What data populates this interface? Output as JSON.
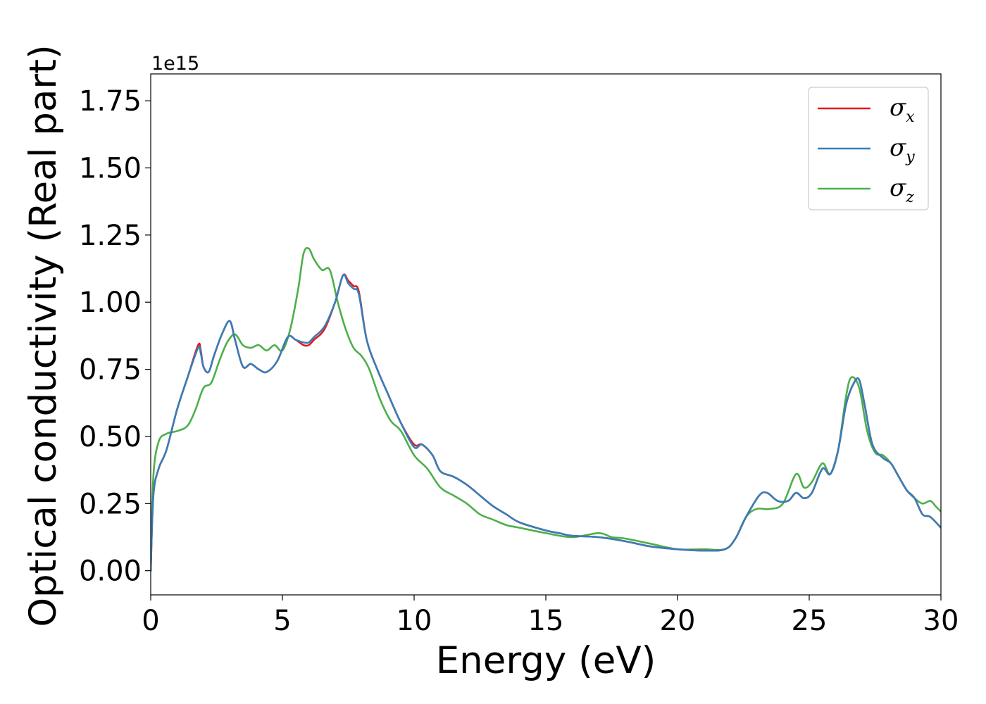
{
  "chart_data": {
    "type": "line",
    "xlabel": "Energy (eV)",
    "ylabel": "Optical conductivity (Real part)",
    "y_offset_text": "1e15",
    "xlim": [
      0,
      30
    ],
    "ylim": [
      -0.09,
      1.85
    ],
    "x_ticks": [
      0,
      5,
      10,
      15,
      20,
      25,
      30
    ],
    "x_tick_labels": [
      "0",
      "5",
      "10",
      "15",
      "20",
      "25",
      "30"
    ],
    "y_ticks": [
      0,
      0.25,
      0.5,
      0.75,
      1.0,
      1.25,
      1.5,
      1.75
    ],
    "y_tick_labels": [
      "0.00",
      "0.25",
      "0.50",
      "0.75",
      "1.00",
      "1.25",
      "1.50",
      "1.75"
    ],
    "grid": false,
    "legend_position": "top-right",
    "series": [
      {
        "name": "σx",
        "symbol": "σ",
        "subscript": "x",
        "color": "#e41a1c",
        "x": [
          0,
          0.1,
          0.3,
          0.6,
          1.0,
          1.4,
          1.8,
          1.9,
          2.0,
          2.2,
          2.4,
          2.7,
          3.0,
          3.2,
          3.5,
          3.8,
          4.1,
          4.4,
          4.8,
          5.2,
          5.5,
          5.8,
          6.0,
          6.2,
          6.6,
          7.0,
          7.3,
          7.5,
          7.7,
          7.9,
          8.2,
          8.6,
          9.0,
          9.5,
          10.0,
          10.3,
          10.7,
          11.0,
          11.5,
          12.0,
          12.5,
          13.0,
          13.5,
          14.0,
          15.0,
          15.5,
          16.0,
          17.0,
          18.0,
          19.0,
          20.0,
          21.0,
          21.8,
          22.2,
          22.6,
          23.1,
          23.4,
          23.8,
          24.2,
          24.5,
          24.8,
          25.1,
          25.5,
          25.8,
          26.1,
          26.4,
          26.7,
          26.9,
          27.1,
          27.4,
          27.8,
          28.1,
          28.4,
          28.7,
          29.0,
          29.3,
          29.6,
          30.0
        ],
        "y": [
          0.0,
          0.28,
          0.38,
          0.45,
          0.6,
          0.72,
          0.84,
          0.82,
          0.76,
          0.74,
          0.8,
          0.88,
          0.93,
          0.86,
          0.76,
          0.77,
          0.75,
          0.74,
          0.78,
          0.87,
          0.86,
          0.84,
          0.84,
          0.86,
          0.9,
          1.0,
          1.1,
          1.08,
          1.06,
          1.04,
          0.86,
          0.75,
          0.66,
          0.55,
          0.47,
          0.47,
          0.43,
          0.37,
          0.35,
          0.32,
          0.28,
          0.24,
          0.21,
          0.18,
          0.15,
          0.14,
          0.13,
          0.125,
          0.11,
          0.09,
          0.08,
          0.075,
          0.08,
          0.12,
          0.2,
          0.28,
          0.29,
          0.26,
          0.26,
          0.29,
          0.27,
          0.29,
          0.38,
          0.36,
          0.45,
          0.62,
          0.7,
          0.71,
          0.62,
          0.47,
          0.42,
          0.4,
          0.35,
          0.3,
          0.27,
          0.21,
          0.2,
          0.16
        ]
      },
      {
        "name": "σy",
        "symbol": "σ",
        "subscript": "y",
        "color": "#377eb8",
        "x": [
          0,
          0.1,
          0.3,
          0.6,
          1.0,
          1.4,
          1.8,
          1.9,
          2.0,
          2.2,
          2.4,
          2.7,
          3.0,
          3.2,
          3.5,
          3.8,
          4.1,
          4.4,
          4.8,
          5.2,
          5.5,
          5.8,
          6.0,
          6.2,
          6.6,
          7.0,
          7.3,
          7.5,
          7.7,
          7.9,
          8.2,
          8.6,
          9.0,
          9.5,
          10.0,
          10.3,
          10.7,
          11.0,
          11.5,
          12.0,
          12.5,
          13.0,
          13.5,
          14.0,
          15.0,
          15.5,
          16.0,
          17.0,
          18.0,
          19.0,
          20.0,
          21.0,
          21.8,
          22.2,
          22.6,
          23.1,
          23.4,
          23.8,
          24.2,
          24.5,
          24.8,
          25.1,
          25.5,
          25.8,
          26.1,
          26.4,
          26.7,
          26.9,
          27.1,
          27.4,
          27.8,
          28.1,
          28.4,
          28.7,
          29.0,
          29.3,
          29.6,
          30.0
        ],
        "y": [
          0.0,
          0.28,
          0.38,
          0.45,
          0.6,
          0.72,
          0.83,
          0.81,
          0.76,
          0.74,
          0.8,
          0.88,
          0.93,
          0.86,
          0.76,
          0.77,
          0.75,
          0.74,
          0.78,
          0.87,
          0.86,
          0.85,
          0.85,
          0.87,
          0.91,
          1.0,
          1.1,
          1.07,
          1.05,
          1.03,
          0.86,
          0.75,
          0.66,
          0.55,
          0.46,
          0.47,
          0.43,
          0.37,
          0.35,
          0.32,
          0.28,
          0.24,
          0.21,
          0.18,
          0.15,
          0.14,
          0.13,
          0.125,
          0.11,
          0.09,
          0.08,
          0.075,
          0.08,
          0.12,
          0.2,
          0.28,
          0.29,
          0.26,
          0.26,
          0.29,
          0.27,
          0.29,
          0.38,
          0.36,
          0.45,
          0.62,
          0.7,
          0.71,
          0.62,
          0.47,
          0.42,
          0.4,
          0.35,
          0.3,
          0.27,
          0.21,
          0.2,
          0.16
        ]
      },
      {
        "name": "σz",
        "symbol": "σ",
        "subscript": "z",
        "color": "#4daf4a",
        "x": [
          0,
          0.1,
          0.3,
          0.6,
          1.0,
          1.4,
          1.7,
          2.0,
          2.3,
          2.6,
          2.9,
          3.2,
          3.5,
          3.8,
          4.1,
          4.4,
          4.7,
          5.0,
          5.3,
          5.6,
          5.8,
          6.0,
          6.2,
          6.5,
          6.8,
          7.1,
          7.4,
          7.7,
          8.0,
          8.3,
          8.7,
          9.1,
          9.5,
          10.0,
          10.5,
          11.0,
          11.5,
          12.0,
          12.5,
          13.0,
          13.5,
          14.0,
          15.0,
          16.0,
          17.0,
          17.5,
          18.0,
          19.0,
          20.0,
          21.0,
          21.8,
          22.2,
          22.6,
          23.0,
          23.5,
          24.0,
          24.5,
          24.8,
          25.1,
          25.5,
          25.8,
          26.1,
          26.4,
          26.6,
          26.9,
          27.2,
          27.5,
          27.8,
          28.1,
          28.4,
          28.7,
          29.0,
          29.3,
          29.6,
          29.8,
          30.0
        ],
        "y": [
          0.0,
          0.35,
          0.48,
          0.51,
          0.52,
          0.54,
          0.6,
          0.68,
          0.7,
          0.78,
          0.85,
          0.88,
          0.84,
          0.83,
          0.84,
          0.82,
          0.84,
          0.82,
          0.9,
          1.05,
          1.18,
          1.2,
          1.16,
          1.12,
          1.12,
          1.0,
          0.9,
          0.83,
          0.8,
          0.75,
          0.64,
          0.56,
          0.52,
          0.43,
          0.38,
          0.31,
          0.28,
          0.25,
          0.21,
          0.19,
          0.17,
          0.16,
          0.14,
          0.125,
          0.14,
          0.125,
          0.12,
          0.1,
          0.08,
          0.08,
          0.08,
          0.12,
          0.2,
          0.23,
          0.23,
          0.25,
          0.36,
          0.31,
          0.33,
          0.4,
          0.36,
          0.45,
          0.65,
          0.72,
          0.68,
          0.52,
          0.44,
          0.43,
          0.4,
          0.35,
          0.3,
          0.27,
          0.25,
          0.26,
          0.24,
          0.22
        ]
      }
    ]
  }
}
